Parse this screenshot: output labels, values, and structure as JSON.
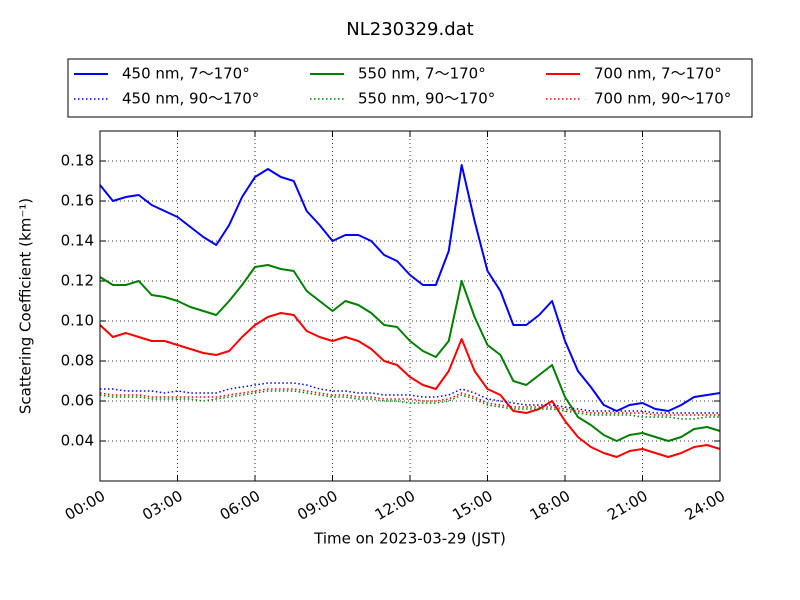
{
  "chart_data": {
    "type": "line",
    "title": "NL230329.dat",
    "xlabel": "Time on 2023-03-29 (JST)",
    "ylabel": "Scattering Coefficient (km⁻¹)",
    "x": [
      0,
      0.5,
      1,
      1.5,
      2,
      2.5,
      3,
      3.5,
      4,
      4.5,
      5,
      5.5,
      6,
      6.5,
      7,
      7.5,
      8,
      8.5,
      9,
      9.5,
      10,
      10.5,
      11,
      11.5,
      12,
      12.5,
      13,
      13.5,
      14,
      14.5,
      15,
      15.5,
      16,
      16.5,
      17,
      17.5,
      18,
      18.5,
      19,
      19.5,
      20,
      20.5,
      21,
      21.5,
      22,
      22.5,
      23,
      23.5,
      24
    ],
    "xlim": [
      0,
      24
    ],
    "xticks": [
      {
        "value": 0,
        "label": "00:00"
      },
      {
        "value": 3,
        "label": "03:00"
      },
      {
        "value": 6,
        "label": "06:00"
      },
      {
        "value": 9,
        "label": "09:00"
      },
      {
        "value": 12,
        "label": "12:00"
      },
      {
        "value": 15,
        "label": "15:00"
      },
      {
        "value": 18,
        "label": "18:00"
      },
      {
        "value": 21,
        "label": "21:00"
      },
      {
        "value": 24,
        "label": "24:00"
      }
    ],
    "ylim": [
      0.02,
      0.195
    ],
    "yticks": [
      0.04,
      0.06,
      0.08,
      {
        "value": 0.1,
        "label": "0.10"
      },
      0.12,
      0.14,
      0.16,
      0.18
    ],
    "grid": true,
    "series": [
      {
        "name": "450 nm, 7～170°",
        "color": "#0000ff",
        "line_style": "solid",
        "values": [
          0.168,
          0.16,
          0.162,
          0.163,
          0.158,
          0.155,
          0.152,
          0.147,
          0.142,
          0.138,
          0.148,
          0.162,
          0.172,
          0.176,
          0.172,
          0.17,
          0.155,
          0.148,
          0.14,
          0.143,
          0.143,
          0.14,
          0.133,
          0.13,
          0.123,
          0.118,
          0.118,
          0.135,
          0.178,
          0.15,
          0.125,
          0.115,
          0.098,
          0.098,
          0.103,
          0.11,
          0.09,
          0.075,
          0.067,
          0.058,
          0.055,
          0.058,
          0.059,
          0.056,
          0.055,
          0.058,
          0.062,
          0.063,
          0.064
        ]
      },
      {
        "name": "550 nm, 7～170°",
        "color": "#008000",
        "line_style": "solid",
        "values": [
          0.122,
          0.118,
          0.118,
          0.12,
          0.113,
          0.112,
          0.11,
          0.107,
          0.105,
          0.103,
          0.11,
          0.118,
          0.127,
          0.128,
          0.126,
          0.125,
          0.115,
          0.11,
          0.105,
          0.11,
          0.108,
          0.104,
          0.098,
          0.097,
          0.09,
          0.085,
          0.082,
          0.09,
          0.12,
          0.102,
          0.088,
          0.083,
          0.07,
          0.068,
          0.073,
          0.078,
          0.062,
          0.052,
          0.048,
          0.043,
          0.04,
          0.043,
          0.044,
          0.042,
          0.04,
          0.042,
          0.046,
          0.047,
          0.045
        ]
      },
      {
        "name": "700 nm, 7～170°",
        "color": "#ff0000",
        "line_style": "solid",
        "values": [
          0.098,
          0.092,
          0.094,
          0.092,
          0.09,
          0.09,
          0.088,
          0.086,
          0.084,
          0.083,
          0.085,
          0.092,
          0.098,
          0.102,
          0.104,
          0.103,
          0.095,
          0.092,
          0.09,
          0.092,
          0.09,
          0.086,
          0.08,
          0.078,
          0.072,
          0.068,
          0.066,
          0.075,
          0.091,
          0.075,
          0.066,
          0.063,
          0.055,
          0.054,
          0.056,
          0.06,
          0.05,
          0.042,
          0.037,
          0.034,
          0.032,
          0.035,
          0.036,
          0.034,
          0.032,
          0.034,
          0.037,
          0.038,
          0.036
        ]
      },
      {
        "name": "450 nm, 90～170°",
        "color": "#0000ff",
        "line_style": "dotted",
        "values": [
          0.066,
          0.066,
          0.065,
          0.065,
          0.065,
          0.064,
          0.065,
          0.064,
          0.064,
          0.064,
          0.066,
          0.067,
          0.068,
          0.069,
          0.069,
          0.069,
          0.068,
          0.066,
          0.065,
          0.065,
          0.064,
          0.064,
          0.063,
          0.063,
          0.063,
          0.062,
          0.062,
          0.063,
          0.066,
          0.064,
          0.061,
          0.06,
          0.059,
          0.058,
          0.058,
          0.058,
          0.057,
          0.056,
          0.055,
          0.055,
          0.055,
          0.055,
          0.055,
          0.054,
          0.054,
          0.054,
          0.054,
          0.054,
          0.054
        ]
      },
      {
        "name": "550 nm, 90～170°",
        "color": "#008000",
        "line_style": "dotted",
        "values": [
          0.063,
          0.062,
          0.062,
          0.062,
          0.061,
          0.061,
          0.061,
          0.061,
          0.06,
          0.061,
          0.062,
          0.063,
          0.064,
          0.065,
          0.065,
          0.065,
          0.064,
          0.063,
          0.062,
          0.062,
          0.061,
          0.061,
          0.06,
          0.06,
          0.059,
          0.059,
          0.059,
          0.06,
          0.063,
          0.061,
          0.058,
          0.057,
          0.056,
          0.056,
          0.056,
          0.056,
          0.055,
          0.054,
          0.053,
          0.053,
          0.053,
          0.053,
          0.052,
          0.052,
          0.052,
          0.051,
          0.051,
          0.052,
          0.052
        ]
      },
      {
        "name": "700 nm, 90～170°",
        "color": "#ff0000",
        "line_style": "dotted",
        "values": [
          0.064,
          0.063,
          0.063,
          0.063,
          0.062,
          0.062,
          0.062,
          0.062,
          0.062,
          0.062,
          0.063,
          0.064,
          0.065,
          0.066,
          0.066,
          0.066,
          0.065,
          0.064,
          0.063,
          0.063,
          0.062,
          0.062,
          0.061,
          0.061,
          0.061,
          0.06,
          0.06,
          0.061,
          0.064,
          0.062,
          0.059,
          0.058,
          0.057,
          0.057,
          0.057,
          0.057,
          0.056,
          0.055,
          0.054,
          0.054,
          0.054,
          0.054,
          0.054,
          0.053,
          0.053,
          0.053,
          0.053,
          0.053,
          0.053
        ]
      }
    ]
  }
}
